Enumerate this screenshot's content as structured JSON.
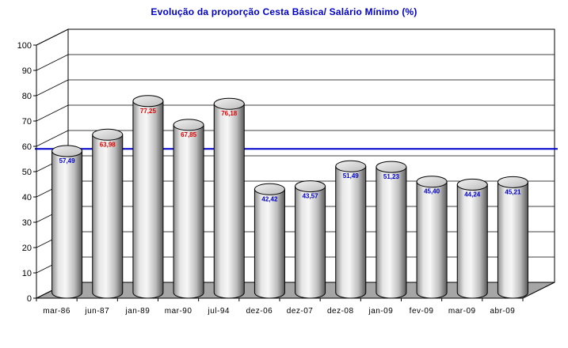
{
  "chart_data": {
    "type": "bar",
    "title": "Evolução da proporção Cesta Básica/ Salário Mínimo (%)",
    "xlabel": "",
    "ylabel": "",
    "ylim": [
      0,
      100
    ],
    "yticks": [
      0,
      10,
      20,
      30,
      40,
      50,
      60,
      70,
      80,
      90,
      100
    ],
    "categories": [
      "mar-86",
      "jun-87",
      "jan-89",
      "mar-90",
      "jul-94",
      "dez-06",
      "dez-07",
      "dez-08",
      "jan-09",
      "fev-09",
      "mar-09",
      "abr-09"
    ],
    "values": [
      57.49,
      63.98,
      77.25,
      67.85,
      76.18,
      42.42,
      43.57,
      51.49,
      51.23,
      45.4,
      44.24,
      45.21
    ],
    "data_labels": [
      "57,49",
      "63,98",
      "77,25",
      "67,85",
      "76,18",
      "42,42",
      "43,57",
      "51,49",
      "51,23",
      "45,40",
      "44,24",
      "45,21"
    ],
    "label_colors": [
      "#0000cc",
      "#e00000",
      "#e00000",
      "#e00000",
      "#e00000",
      "#0000cc",
      "#0000cc",
      "#0000cc",
      "#0000cc",
      "#0000cc",
      "#0000cc",
      "#0000cc"
    ],
    "reference_line": {
      "value": 59,
      "color": "#0000cc"
    },
    "bar_style": "3d-cylinder",
    "grid": true,
    "legend": "none"
  }
}
